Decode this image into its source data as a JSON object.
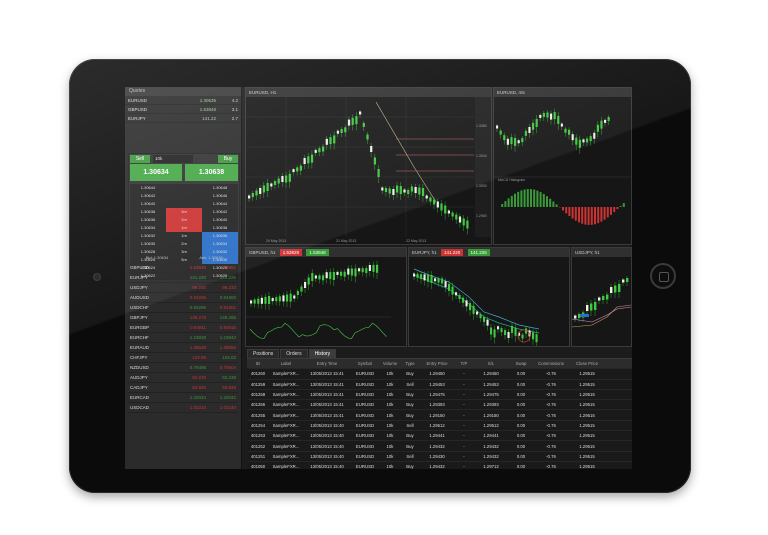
{
  "watchlist_header": "Quotes",
  "watchlist": [
    {
      "sym": "EURUSD",
      "bid": "1.30635",
      "ask": "4.2"
    },
    {
      "sym": "GBPUSD",
      "bid": "1.53848",
      "ask": "3.1"
    },
    {
      "sym": "EURJPY",
      "bid": "141.22",
      "ask": "2.7"
    }
  ],
  "ticket": {
    "sell_label": "Sell",
    "buy_label": "Buy",
    "qty": "10k",
    "sell_price": "1.30634",
    "buy_price": "1.30638",
    "ladder": [
      {
        "l": "1.30644",
        "m": "",
        "r": "1.30648",
        "c": "dark"
      },
      {
        "l": "1.30642",
        "m": "",
        "r": "1.30646",
        "c": "dark"
      },
      {
        "l": "1.30640",
        "m": "",
        "r": "1.30644",
        "c": "dark"
      },
      {
        "l": "1.30638",
        "m": "3m",
        "r": "1.30642",
        "c": "red"
      },
      {
        "l": "1.30636",
        "m": "2m",
        "r": "1.30640",
        "c": "red"
      },
      {
        "l": "1.30634",
        "m": "1m",
        "r": "1.30638",
        "c": "red"
      },
      {
        "l": "1.30632",
        "m": "1m",
        "r": "1.30636",
        "c": "blue"
      },
      {
        "l": "1.30630",
        "m": "2m",
        "r": "1.30634",
        "c": "blue"
      },
      {
        "l": "1.30628",
        "m": "3m",
        "r": "1.30632",
        "c": "blue"
      },
      {
        "l": "1.30626",
        "m": "5m",
        "r": "1.30630",
        "c": "blue"
      },
      {
        "l": "1.30624",
        "m": "",
        "r": "1.30628",
        "c": "dark"
      },
      {
        "l": "1.30622",
        "m": "",
        "r": "1.30626",
        "c": "dark"
      }
    ],
    "foot": [
      "Bid: 1.30634",
      "Ask: 1.30638"
    ]
  },
  "pairs": [
    {
      "s": "GBPUSD",
      "b": "1.53848",
      "a": "1.53851"
    },
    {
      "s": "EURJPY",
      "b": "141.220",
      "a": "141.225"
    },
    {
      "s": "USDJPY",
      "b": "98.230",
      "a": "98.233"
    },
    {
      "s": "AUDUSD",
      "b": "0.94296",
      "a": "0.94300"
    },
    {
      "s": "USDCHF",
      "b": "0.94296",
      "a": "0.94301"
    },
    {
      "s": "GBPJPY",
      "b": "149.278",
      "a": "149.285"
    },
    {
      "s": "EURGBP",
      "b": "0.84911",
      "a": "0.84915"
    },
    {
      "s": "EURCHF",
      "b": "1.23838",
      "a": "1.23843"
    },
    {
      "s": "EURAUD",
      "b": "1.38548",
      "a": "1.38556"
    },
    {
      "s": "CHFJPY",
      "b": "103.98",
      "a": "104.02"
    },
    {
      "s": "NZDUSD",
      "b": "0.79498",
      "a": "0.79504"
    },
    {
      "s": "AUDJPY",
      "b": "92.230",
      "a": "92.238"
    },
    {
      "s": "CADJPY",
      "b": "93.940",
      "a": "93.948"
    },
    {
      "s": "EURCAD",
      "b": "1.32034",
      "a": "1.32042"
    },
    {
      "s": "USDCAD",
      "b": "1.02234",
      "a": "1.02240"
    }
  ],
  "charts": [
    {
      "title": "EURUSD, H1",
      "sell": "",
      "buy": ""
    },
    {
      "title": "EURUSD, m5",
      "sell": "",
      "buy": ""
    },
    {
      "title": "GBPUSD, h1",
      "sell": "1.53828",
      "buy": "1.53848"
    },
    {
      "title": "EURJPY, h1",
      "sell": "141.220",
      "buy": "141.225"
    },
    {
      "title": "USDJPY, h1",
      "sell": "",
      "buy": ""
    }
  ],
  "tabs": [
    "Positions",
    "Orders",
    "History"
  ],
  "table": {
    "headers": [
      "ID",
      "Label",
      "Entry Time",
      "Symbol",
      "Volume",
      "Type",
      "Entry Price",
      "T/P",
      "S/L",
      "Swap",
      "Commissions",
      "Close Price"
    ],
    "rows": [
      [
        "401260",
        "SampleFXR...",
        "13/05/2013 15:41",
        "EURUSD",
        "10k",
        "Buy",
        "1.29450",
        "-",
        "1.29450",
        "0.00",
        "-0.76",
        "1.29515"
      ],
      [
        "401259",
        "SampleFXR...",
        "13/05/2013 15:41",
        "EURUSD",
        "10k",
        "Sell",
        "1.29453",
        "-",
        "1.29453",
        "0.00",
        "-0.76",
        "1.29515"
      ],
      [
        "401258",
        "SampleFXR...",
        "13/05/2013 15:41",
        "EURUSD",
        "10k",
        "Buy",
        "1.29475",
        "-",
        "1.29475",
        "0.00",
        "-0.76",
        "1.29515"
      ],
      [
        "401256",
        "SampleFXR...",
        "13/05/2013 15:41",
        "EURUSD",
        "10k",
        "Buy",
        "1.29393",
        "-",
        "1.29393",
        "0.00",
        "-0.76",
        "1.29515"
      ],
      [
        "401255",
        "SampleFXR...",
        "13/05/2013 15:41",
        "EURUSD",
        "10k",
        "Buy",
        "1.29150",
        "-",
        "1.29150",
        "0.00",
        "-0.76",
        "1.29515"
      ],
      [
        "401254",
        "SampleFXR...",
        "13/05/2013 15:40",
        "EURUSD",
        "10k",
        "Sell",
        "1.29512",
        "-",
        "1.29512",
        "0.00",
        "-0.76",
        "1.29515"
      ],
      [
        "401253",
        "SampleFXR...",
        "13/05/2013 15:40",
        "EURUSD",
        "10k",
        "Buy",
        "1.29441",
        "-",
        "1.29441",
        "0.00",
        "-0.76",
        "1.29515"
      ],
      [
        "401252",
        "SampleFXR...",
        "13/05/2013 15:40",
        "EURUSD",
        "10k",
        "Buy",
        "1.29432",
        "-",
        "1.29432",
        "0.00",
        "-0.76",
        "1.29515"
      ],
      [
        "401251",
        "SampleFXR...",
        "13/05/2013 15:40",
        "EURUSD",
        "10k",
        "Sell",
        "1.29430",
        "-",
        "1.29432",
        "0.00",
        "-0.76",
        "1.29515"
      ],
      [
        "401050",
        "SampleFXR...",
        "13/05/2013 15:40",
        "EURUSD",
        "10k",
        "Buy",
        "1.29432",
        "-",
        "1.29712",
        "0.00",
        "-0.76",
        "1.29515"
      ]
    ]
  },
  "colors": {
    "positive": "#3a9a3a",
    "negative": "#cc3333",
    "accent_blue": "#2a6fc9"
  }
}
